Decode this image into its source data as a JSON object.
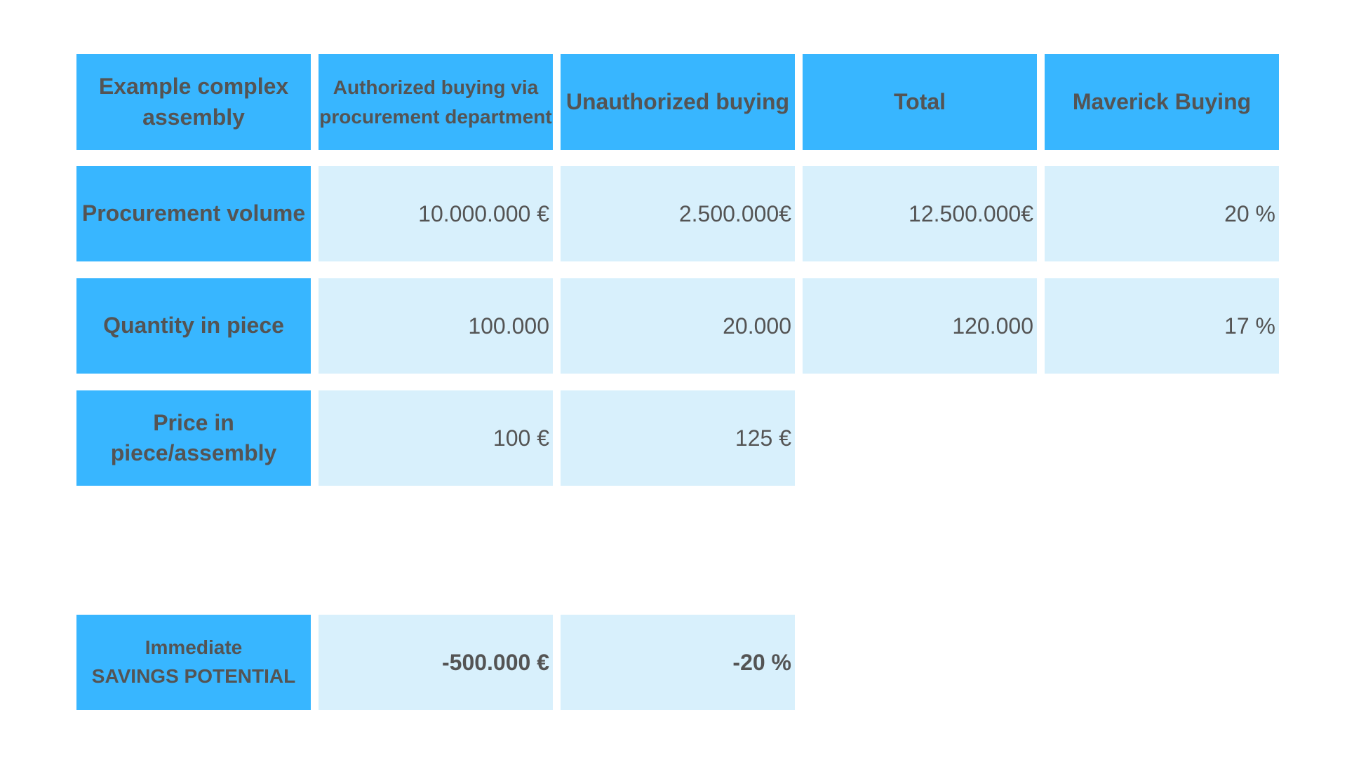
{
  "colors": {
    "header_bg": "#38b6ff",
    "cell_bg": "#d8f0fc",
    "text": "#545454"
  },
  "header": {
    "corner": "Example complex assembly",
    "col1": "Authorized buying via procurement department",
    "col2": "Unauthorized buying",
    "col3": "Total",
    "col4": "Maverick Buying"
  },
  "rows": [
    {
      "label": "Procurement volume",
      "authorized": "10.000.000 €",
      "unauthorized": "2.500.000€",
      "total": "12.500.000€",
      "maverick": "20 %"
    },
    {
      "label": "Quantity in piece",
      "authorized": "100.000",
      "unauthorized": "20.000",
      "total": "120.000",
      "maverick": "17 %"
    },
    {
      "label": "Price in piece/assembly",
      "authorized": "100 €",
      "unauthorized": "125 €"
    }
  ],
  "savings": {
    "label_line1": "Immediate",
    "label_line2": "SAVINGS POTENTIAL",
    "absolute": "-500.000 €",
    "percent": "-20 %"
  }
}
